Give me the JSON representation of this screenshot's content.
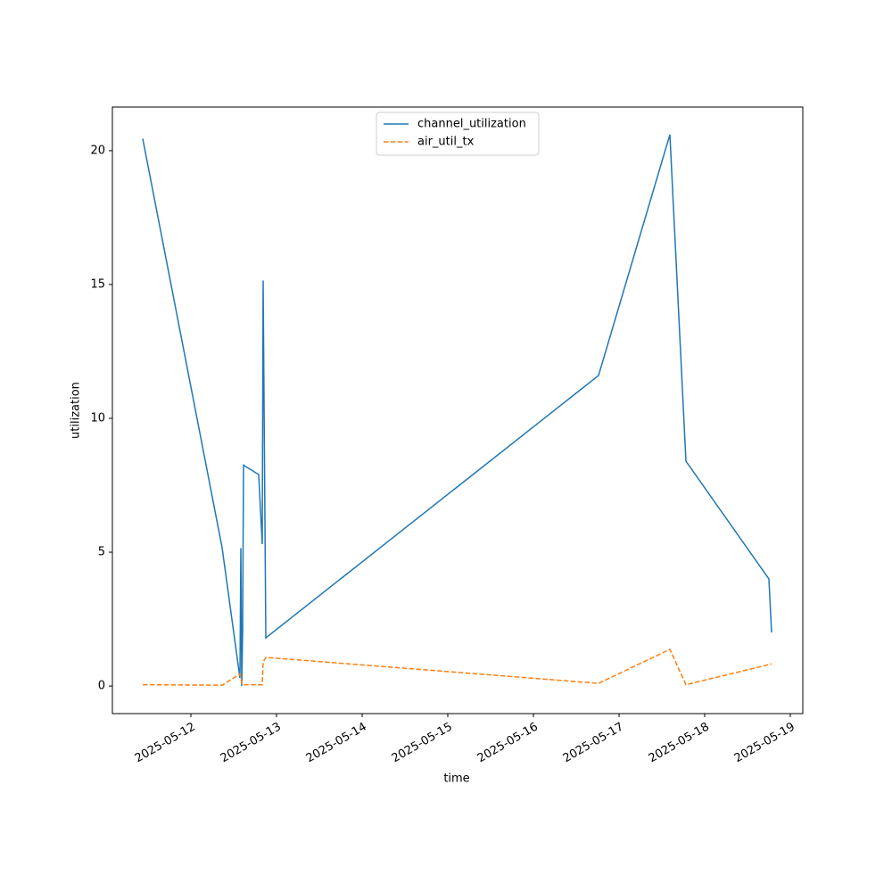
{
  "chart_data": {
    "type": "line",
    "x_label": "time",
    "y_label": "utilization",
    "x": [
      "2025-05-11T10:30",
      "2025-05-12T08:45",
      "2025-05-12T13:45",
      "2025-05-12T14:00",
      "2025-05-12T14:15",
      "2025-05-12T14:30",
      "2025-05-12T14:45",
      "2025-05-12T19:00",
      "2025-05-12T20:00",
      "2025-05-12T20:15",
      "2025-05-12T21:00",
      "2025-05-16T18:15",
      "2025-05-17T14:15",
      "2025-05-17T18:45",
      "2025-05-18T18:00",
      "2025-05-18T18:45"
    ],
    "series": [
      {
        "name": "channel_utilization",
        "color": "#1f77b4",
        "dash": "solid",
        "values": [
          20.45,
          5.17,
          0.3,
          5.15,
          0.0,
          2.0,
          8.25,
          7.9,
          5.3,
          15.15,
          1.8,
          11.6,
          20.6,
          8.4,
          4.0,
          2.0
        ]
      },
      {
        "name": "air_util_tx",
        "color": "#ff7f0e",
        "dash": "dashed",
        "values": [
          0.05,
          0.03,
          0.45,
          0.3,
          0.1,
          0.05,
          0.05,
          0.05,
          0.05,
          0.9,
          1.07,
          0.1,
          1.37,
          0.05,
          0.8,
          0.83
        ]
      }
    ],
    "xlim": [
      "2025-05-11T02:00",
      "2025-05-19T03:30"
    ],
    "xticks": [
      "2025-05-12",
      "2025-05-13",
      "2025-05-14",
      "2025-05-15",
      "2025-05-16",
      "2025-05-17",
      "2025-05-18",
      "2025-05-19"
    ],
    "ylim": [
      -1.03,
      21.63
    ],
    "yticks": [
      0,
      5,
      10,
      15,
      20
    ],
    "legend": "upper center",
    "grid": false
  }
}
